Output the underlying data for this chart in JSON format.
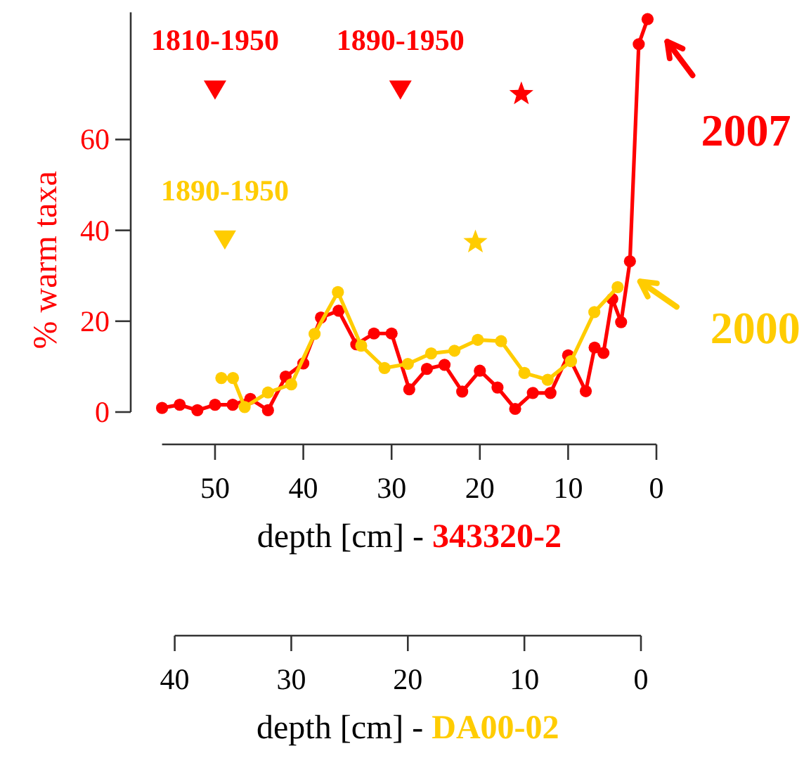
{
  "chart_data": {
    "type": "line",
    "xlabel": "depth [cm] - 343320-2",
    "x2label": "depth [cm] - DA00-02",
    "ylabel": "% warm taxa",
    "xlim": [
      56,
      0
    ],
    "xticks": [
      50,
      40,
      30,
      20,
      10,
      0
    ],
    "x2lim": [
      40,
      0
    ],
    "x2ticks": [
      40,
      30,
      20,
      10,
      0
    ],
    "ylim": [
      0,
      88
    ],
    "yticks": [
      0,
      20,
      40,
      60
    ],
    "marker": "circle",
    "line_style": "solid",
    "grid": false,
    "legend": false,
    "series": [
      {
        "color": "#ff0000",
        "x": [
          56,
          54,
          52,
          50,
          48,
          46,
          44,
          42,
          40,
          38,
          36,
          34,
          32,
          30,
          28,
          26,
          24,
          22,
          20,
          18,
          16,
          14,
          12,
          10,
          8,
          7,
          6,
          5,
          4,
          3,
          2,
          1
        ],
        "values": [
          0.9,
          1.6,
          0.4,
          1.6,
          1.6,
          2.9,
          0.4,
          7.8,
          10.7,
          20.8,
          22.3,
          14.9,
          17.3,
          17.3,
          5.0,
          9.5,
          10.4,
          4.5,
          9.1,
          5.4,
          0.7,
          4.2,
          4.2,
          12.5,
          4.6,
          14.2,
          13.0,
          24.9,
          19.8,
          33.2,
          81,
          86.5
        ]
      },
      {
        "color": "#ffcc00",
        "axis": "x2",
        "x": [
          36,
          35,
          34,
          32,
          30,
          28,
          26,
          24,
          22,
          20,
          18,
          16,
          14,
          12,
          10,
          8,
          6,
          4,
          2
        ],
        "values": [
          7.5,
          7.5,
          1.1,
          4.3,
          6.1,
          17.2,
          26.4,
          14.6,
          9.7,
          10.6,
          12.9,
          13.5,
          15.9,
          15.6,
          8.6,
          7.1,
          11.2,
          22.0,
          27.5
        ]
      },
      {
        "type": "scatter",
        "name": "1810-1950",
        "color": "#ff0000",
        "marker": "triangle",
        "x": [
          50
        ],
        "values": [
          71
        ]
      },
      {
        "type": "scatter",
        "name": "1890-1950",
        "color": "#ff0000",
        "marker": "triangle",
        "x": [
          29
        ],
        "values": [
          71
        ]
      },
      {
        "type": "scatter",
        "color": "#ff0000",
        "marker": "star",
        "x": [
          15.3
        ],
        "values": [
          70
        ]
      },
      {
        "type": "scatter",
        "name": "1890-1950",
        "color": "#ffcc00",
        "axis": "x2",
        "marker": "triangle",
        "x": [
          35.7
        ],
        "values": [
          38
        ]
      },
      {
        "type": "scatter",
        "color": "#ffcc00",
        "axis": "x2",
        "marker": "star",
        "x": [
          14.2
        ],
        "values": [
          37.4
        ]
      }
    ],
    "annotations": [
      {
        "text": "2007",
        "x": 1,
        "y": 86.5
      },
      "2000"
    ]
  }
}
